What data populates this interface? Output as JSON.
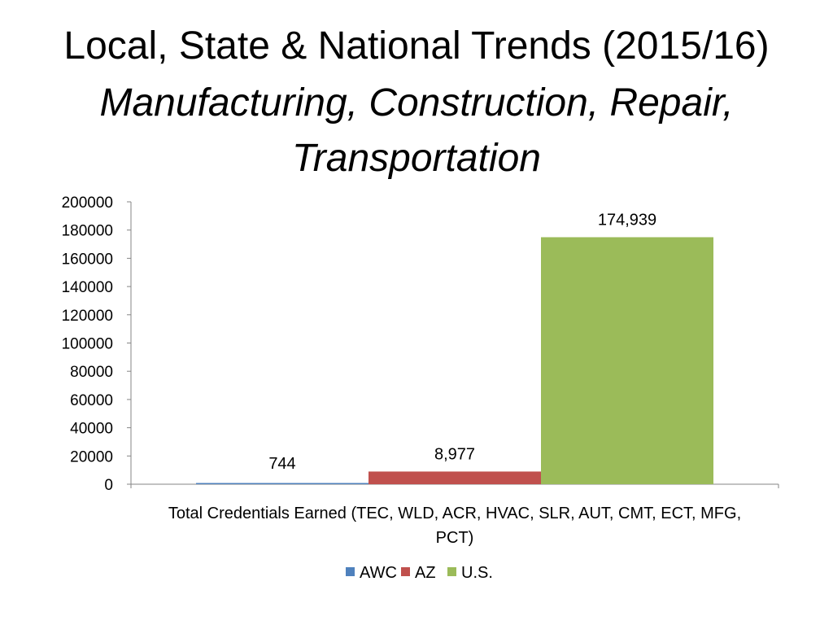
{
  "slide": {
    "title_line1": "Local, State & National Trends (2015/16)",
    "subtitle_line1": "Manufacturing, Construction, Repair,",
    "subtitle_line2": "Transportation"
  },
  "chart_data": {
    "type": "bar",
    "categories": [
      "Total Credentials Earned (TEC, WLD, ACR, HVAC, SLR, AUT, CMT, ECT, MFG, PCT)"
    ],
    "category_lines": [
      "Total Credentials Earned (TEC, WLD, ACR, HVAC, SLR, AUT, CMT, ECT, MFG,",
      "PCT)"
    ],
    "series": [
      {
        "name": "AWC",
        "values": [
          744
        ],
        "label": "744",
        "color": "#4f81bd"
      },
      {
        "name": "AZ",
        "values": [
          8977
        ],
        "label": "8,977",
        "color": "#c0504d"
      },
      {
        "name": "U.S.",
        "values": [
          174939
        ],
        "label": "174,939",
        "color": "#9bbb59"
      }
    ],
    "ylim": [
      0,
      200000
    ],
    "yticks": [
      0,
      20000,
      40000,
      60000,
      80000,
      100000,
      120000,
      140000,
      160000,
      180000,
      200000
    ],
    "legend_position": "bottom",
    "grid": false
  }
}
